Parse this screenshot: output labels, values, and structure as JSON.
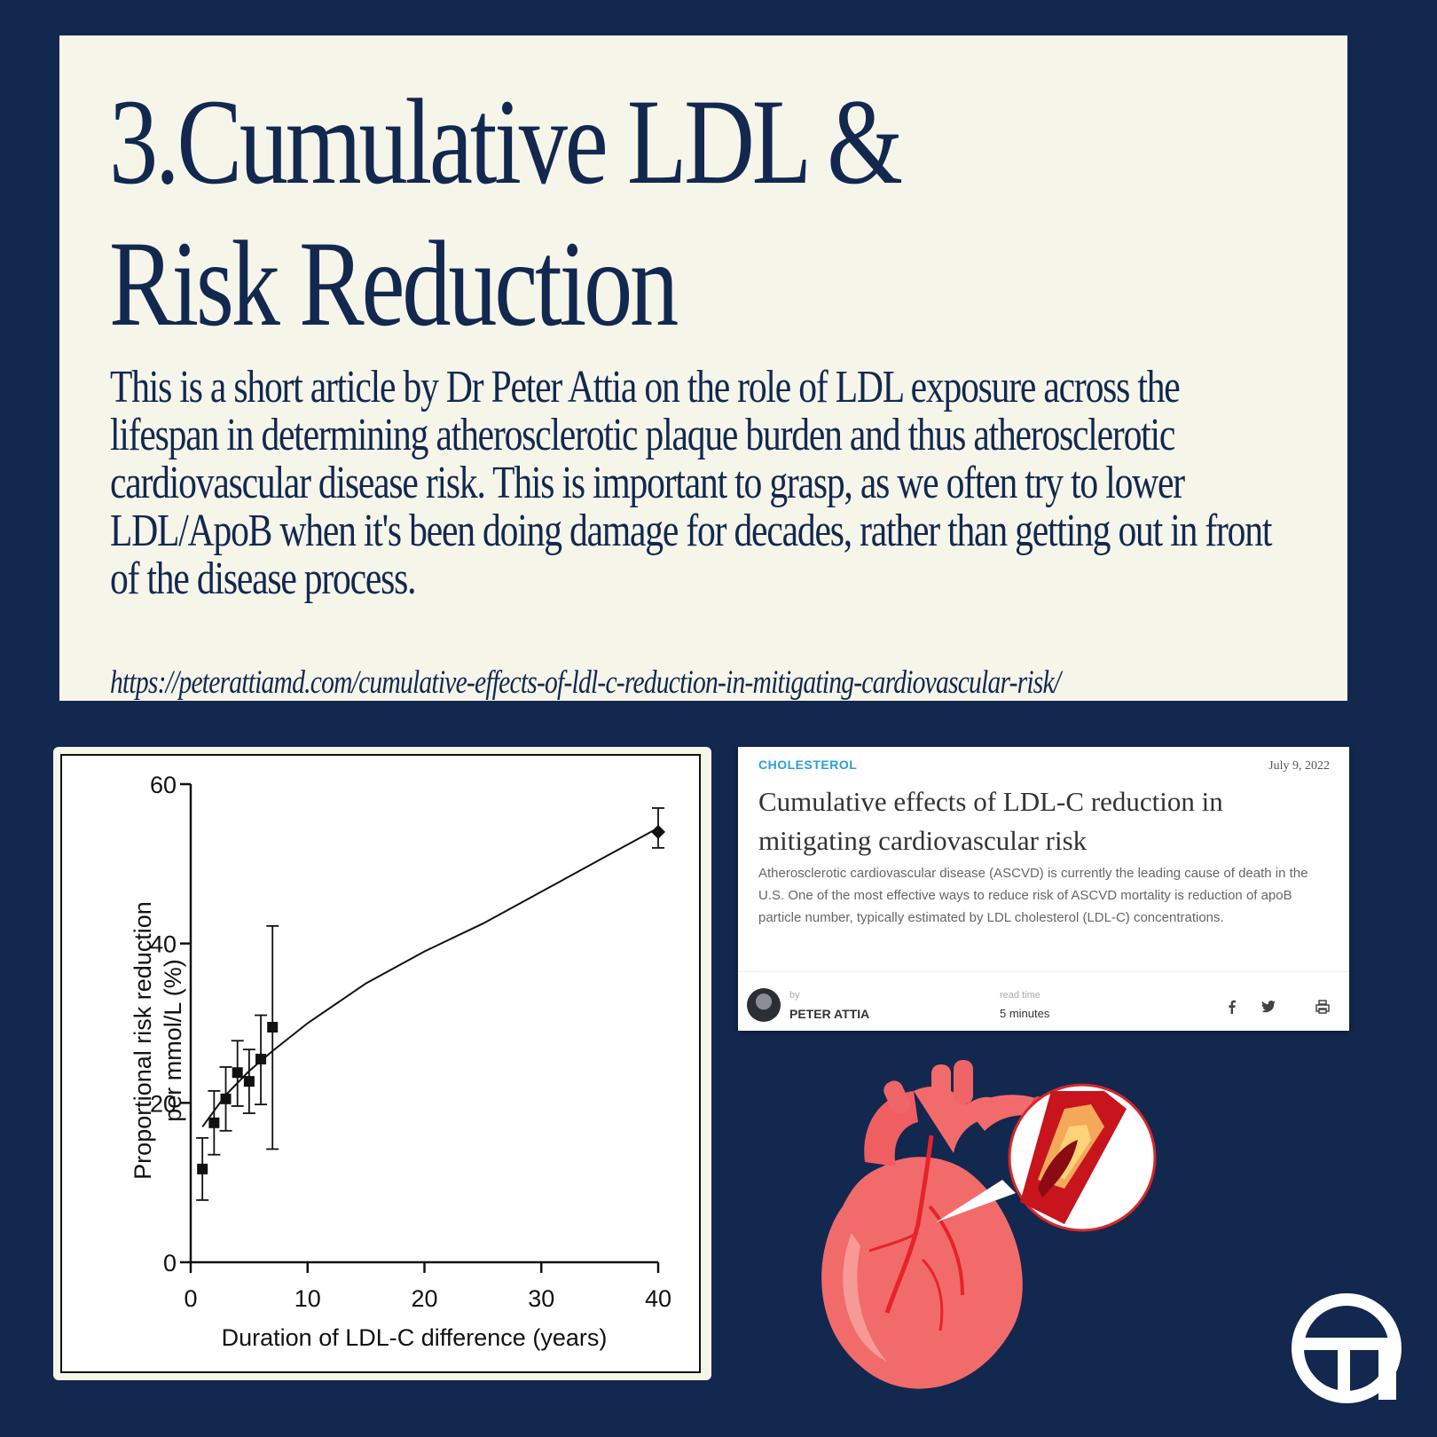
{
  "hero": {
    "title_line1": "3.Cumulative LDL &",
    "title_line2": "Risk Reduction",
    "body": "This is a short article by Dr Peter Attia on the role of LDL exposure across the lifespan in determining atherosclerotic plaque burden and thus atherosclerotic cardiovascular disease risk. This is important to grasp, as we often try to lower LDL/ApoB when it's been doing damage for decades, rather than getting out in front of the disease process.",
    "link": "https://peterattiamd.com/cumulative-effects-of-ldl-c-reduction-in-mitigating-cardiovascular-risk/"
  },
  "chart_data": {
    "type": "scatter",
    "xlabel": "Duration of LDL-C difference (years)",
    "ylabel_line1": "Proportional risk reduction",
    "ylabel_line2": "per mmol/L (%)",
    "xlim": [
      0,
      40
    ],
    "ylim": [
      0,
      60
    ],
    "xticks": [
      0,
      10,
      20,
      30,
      40
    ],
    "yticks": [
      0,
      20,
      40,
      60
    ],
    "grid": false,
    "points": [
      {
        "x": 1,
        "y": 11.7,
        "lo": 7.8,
        "hi": 15.6,
        "marker": "square"
      },
      {
        "x": 2,
        "y": 17.5,
        "lo": 13.5,
        "hi": 21.5,
        "marker": "square"
      },
      {
        "x": 3,
        "y": 20.5,
        "lo": 16.5,
        "hi": 24.5,
        "marker": "square"
      },
      {
        "x": 4,
        "y": 23.8,
        "lo": 19.6,
        "hi": 27.8,
        "marker": "square"
      },
      {
        "x": 5,
        "y": 22.7,
        "lo": 18.7,
        "hi": 26.7,
        "marker": "square"
      },
      {
        "x": 6,
        "y": 25.5,
        "lo": 19.8,
        "hi": 31.0,
        "marker": "square"
      },
      {
        "x": 7,
        "y": 29.5,
        "lo": 14.2,
        "hi": 42.2,
        "marker": "square"
      },
      {
        "x": 40,
        "y": 54.0,
        "lo": 52.0,
        "hi": 57.0,
        "marker": "diamond"
      }
    ],
    "fit_curve": {
      "x": [
        1,
        3,
        5,
        7,
        10,
        15,
        20,
        25,
        30,
        35,
        40
      ],
      "y": [
        17.0,
        21.0,
        24.0,
        26.5,
        30.0,
        35.0,
        39.0,
        42.5,
        46.5,
        50.5,
        54.5
      ]
    }
  },
  "article": {
    "category": "CHOLESTEROL",
    "date": "July 9, 2022",
    "title": "Cumulative effects of LDL-C reduction in mitigating cardiovascular risk",
    "excerpt": "Atherosclerotic cardiovascular disease (ASCVD) is currently the leading cause of death in the U.S. One of the most effective ways to reduce risk of ASCVD mortality is reduction of apoB particle number, typically estimated by LDL cholesterol (LDL-C) concentrations.",
    "by_label": "by",
    "author": "PETER ATTIA",
    "read_time_label": "read time",
    "read_time": "5 minutes",
    "share_icons": [
      "facebook-icon",
      "twitter-icon",
      "print-icon"
    ]
  },
  "colors": {
    "background": "#13284f",
    "card": "#f6f5ea",
    "accent": "#2a9fd6",
    "heart": "#f26b6b"
  }
}
